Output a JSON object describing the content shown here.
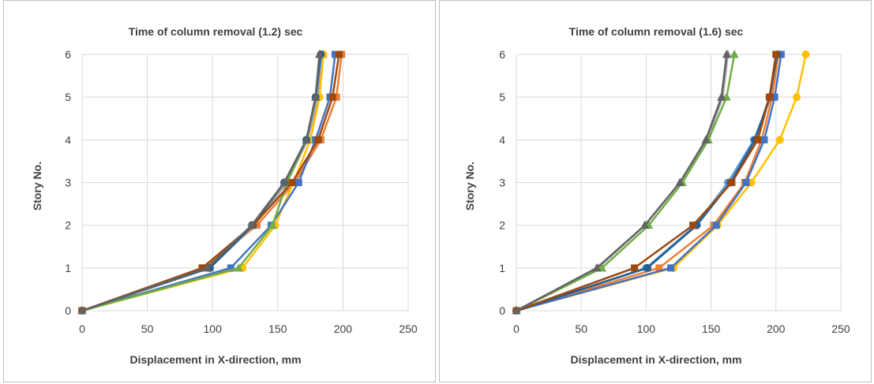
{
  "chart_data": [
    {
      "type": "line",
      "title": "Time of column removal (1.2) sec",
      "xlabel": "Displacement in X-direction, mm",
      "ylabel": "Story No.",
      "xlim": [
        0,
        250
      ],
      "ylim": [
        0,
        6
      ],
      "xticks": [
        0,
        50,
        100,
        150,
        200,
        250
      ],
      "yticks": [
        0,
        1,
        2,
        3,
        4,
        5,
        6
      ],
      "grid": true,
      "series": [
        {
          "color": "#5b9bd5",
          "marker": "circle",
          "points": [
            [
              0,
              0
            ],
            [
              97,
              1
            ],
            [
              130,
              2
            ],
            [
              155,
              3
            ],
            [
              172,
              4
            ],
            [
              180,
              5
            ],
            [
              184,
              6
            ]
          ]
        },
        {
          "color": "#ed7d31",
          "marker": "square",
          "points": [
            [
              0,
              0
            ],
            [
              93,
              1
            ],
            [
              134,
              2
            ],
            [
              163,
              3
            ],
            [
              183,
              4
            ],
            [
              195,
              5
            ],
            [
              199,
              6
            ]
          ]
        },
        {
          "color": "#a5a5a5",
          "marker": "triangle",
          "points": [
            [
              0,
              0
            ],
            [
              98,
              1
            ],
            [
              132,
              2
            ],
            [
              157,
              3
            ],
            [
              173,
              4
            ],
            [
              181,
              5
            ],
            [
              185,
              6
            ]
          ]
        },
        {
          "color": "#ffc000",
          "marker": "circle",
          "points": [
            [
              0,
              0
            ],
            [
              123,
              1
            ],
            [
              148,
              2
            ],
            [
              162,
              3
            ],
            [
              175,
              4
            ],
            [
              182,
              5
            ],
            [
              185,
              6
            ]
          ]
        },
        {
          "color": "#4472c4",
          "marker": "square",
          "points": [
            [
              0,
              0
            ],
            [
              114,
              1
            ],
            [
              145,
              2
            ],
            [
              166,
              3
            ],
            [
              179,
              4
            ],
            [
              190,
              5
            ],
            [
              194,
              6
            ]
          ]
        },
        {
          "color": "#70ad47",
          "marker": "triangle",
          "points": [
            [
              0,
              0
            ],
            [
              120,
              1
            ],
            [
              146,
              2
            ],
            [
              157,
              3
            ],
            [
              172,
              4
            ],
            [
              179,
              5
            ],
            [
              182,
              6
            ]
          ]
        },
        {
          "color": "#255e91",
          "marker": "circle",
          "points": [
            [
              0,
              0
            ],
            [
              98,
              1
            ],
            [
              131,
              2
            ],
            [
              155,
              3
            ],
            [
              172,
              4
            ],
            [
              179,
              5
            ],
            [
              183,
              6
            ]
          ]
        },
        {
          "color": "#9e480e",
          "marker": "square",
          "points": [
            [
              0,
              0
            ],
            [
              92,
              1
            ],
            [
              131,
              2
            ],
            [
              161,
              3
            ],
            [
              181,
              4
            ],
            [
              192,
              5
            ],
            [
              197,
              6
            ]
          ]
        },
        {
          "color": "#636363",
          "marker": "triangle",
          "points": [
            [
              0,
              0
            ],
            [
              96,
              1
            ],
            [
              130,
              2
            ],
            [
              155,
              3
            ],
            [
              172,
              4
            ],
            [
              179,
              5
            ],
            [
              182,
              6
            ]
          ]
        }
      ]
    },
    {
      "type": "line",
      "title": "Time of column removal (1.6) sec",
      "xlabel": "Displacement in X-direction, mm",
      "ylabel": "Story No.",
      "xlim": [
        0,
        250
      ],
      "ylim": [
        0,
        6
      ],
      "xticks": [
        0,
        50,
        100,
        150,
        200,
        250
      ],
      "yticks": [
        0,
        1,
        2,
        3,
        4,
        5,
        6
      ],
      "grid": true,
      "series": [
        {
          "color": "#5b9bd5",
          "marker": "circle",
          "points": [
            [
              0,
              0
            ],
            [
              100,
              1
            ],
            [
              138,
              2
            ],
            [
              163,
              3
            ],
            [
              183,
              4
            ],
            [
              196,
              5
            ],
            [
              202,
              6
            ]
          ]
        },
        {
          "color": "#ed7d31",
          "marker": "square",
          "points": [
            [
              0,
              0
            ],
            [
              110,
              1
            ],
            [
              152,
              2
            ],
            [
              176,
              3
            ],
            [
              189,
              4
            ],
            [
              197,
              5
            ],
            [
              202,
              6
            ]
          ]
        },
        {
          "color": "#a5a5a5",
          "marker": "triangle",
          "points": [
            [
              0,
              0
            ],
            [
              63,
              1
            ],
            [
              99,
              2
            ],
            [
              126,
              3
            ],
            [
              147,
              4
            ],
            [
              159,
              5
            ],
            [
              163,
              6
            ]
          ]
        },
        {
          "color": "#ffc000",
          "marker": "circle",
          "points": [
            [
              0,
              0
            ],
            [
              121,
              1
            ],
            [
              155,
              2
            ],
            [
              181,
              3
            ],
            [
              203,
              4
            ],
            [
              216,
              5
            ],
            [
              223,
              6
            ]
          ]
        },
        {
          "color": "#4472c4",
          "marker": "square",
          "points": [
            [
              0,
              0
            ],
            [
              119,
              1
            ],
            [
              154,
              2
            ],
            [
              177,
              3
            ],
            [
              191,
              4
            ],
            [
              199,
              5
            ],
            [
              204,
              6
            ]
          ]
        },
        {
          "color": "#70ad47",
          "marker": "triangle",
          "points": [
            [
              0,
              0
            ],
            [
              66,
              1
            ],
            [
              102,
              2
            ],
            [
              128,
              3
            ],
            [
              148,
              4
            ],
            [
              162,
              5
            ],
            [
              168,
              6
            ]
          ]
        },
        {
          "color": "#255e91",
          "marker": "circle",
          "points": [
            [
              0,
              0
            ],
            [
              101,
              1
            ],
            [
              139,
              2
            ],
            [
              165,
              3
            ],
            [
              184,
              4
            ],
            [
              195,
              5
            ],
            [
              201,
              6
            ]
          ]
        },
        {
          "color": "#9e480e",
          "marker": "square",
          "points": [
            [
              0,
              0
            ],
            [
              91,
              1
            ],
            [
              136,
              2
            ],
            [
              166,
              3
            ],
            [
              186,
              4
            ],
            [
              195,
              5
            ],
            [
              200,
              6
            ]
          ]
        },
        {
          "color": "#636363",
          "marker": "triangle",
          "points": [
            [
              0,
              0
            ],
            [
              62,
              1
            ],
            [
              99,
              2
            ],
            [
              126,
              3
            ],
            [
              146,
              4
            ],
            [
              158,
              5
            ],
            [
              162,
              6
            ]
          ]
        }
      ]
    }
  ]
}
